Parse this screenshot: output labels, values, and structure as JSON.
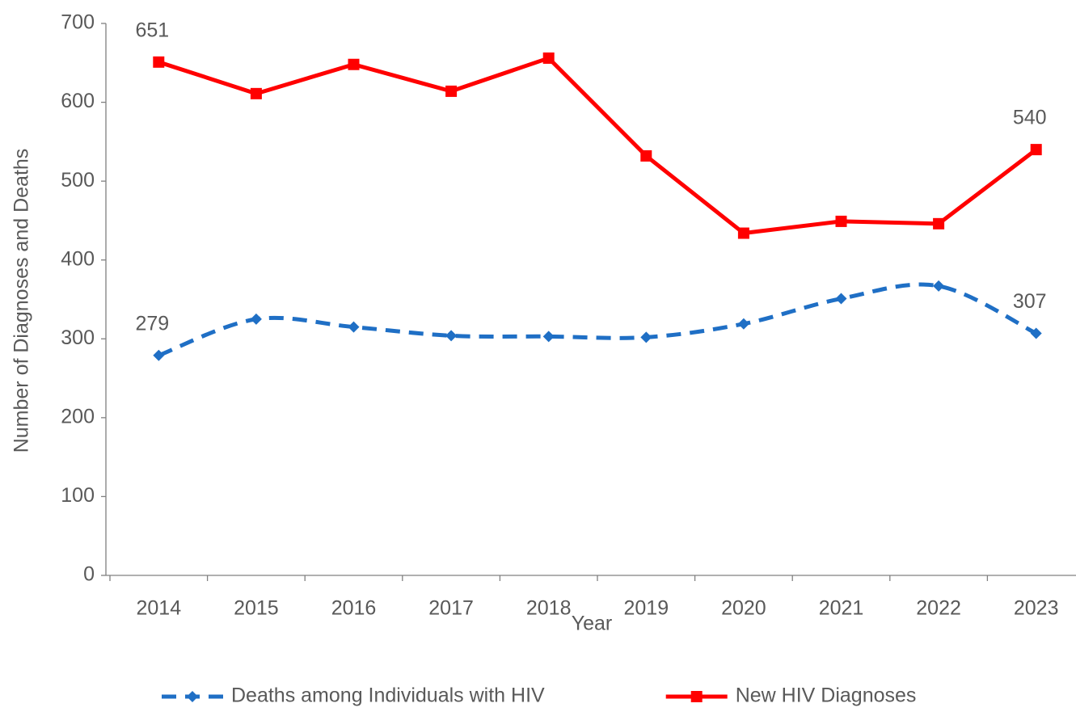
{
  "chart_data": {
    "type": "line",
    "x_label": "Year",
    "y_label": "Number of Diagnoses and Deaths",
    "categories": [
      "2014",
      "2015",
      "2016",
      "2017",
      "2018",
      "2019",
      "2020",
      "2021",
      "2022",
      "2023"
    ],
    "series": [
      {
        "name": "Deaths among Individuals with HIV",
        "color": "#1f6fc5",
        "dashed": true,
        "smooth": true,
        "marker": "diamond",
        "values": [
          279,
          325,
          315,
          304,
          303,
          302,
          319,
          351,
          367,
          307
        ],
        "value_labels": [
          "279",
          null,
          null,
          null,
          null,
          null,
          null,
          null,
          null,
          "307"
        ]
      },
      {
        "name": "New HIV Diagnoses",
        "color": "#ff0000",
        "dashed": false,
        "smooth": false,
        "marker": "square",
        "values": [
          651,
          611,
          648,
          614,
          656,
          532,
          434,
          449,
          446,
          540
        ],
        "value_labels": [
          "651",
          null,
          null,
          null,
          null,
          null,
          null,
          null,
          null,
          "540"
        ]
      }
    ],
    "ylim": [
      0,
      700
    ],
    "yticks": [
      0,
      100,
      200,
      300,
      400,
      500,
      600,
      700
    ],
    "legend": "bottom"
  }
}
